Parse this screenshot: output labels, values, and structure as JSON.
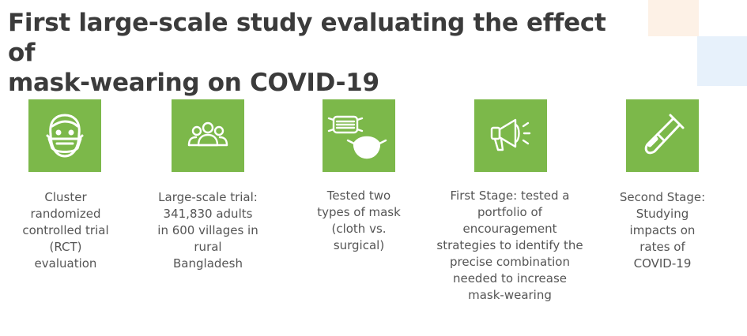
{
  "title": {
    "line1": "First large-scale study evaluating the effect of",
    "line2": "mask-wearing on COVID-19"
  },
  "colors": {
    "tile_green": "#7cb84a",
    "title_text": "#3b3b3b",
    "caption_text": "#555555",
    "deco_peach": "#fdf1e6",
    "deco_blue": "#e7f1fb"
  },
  "items": [
    {
      "icon": "masked-face-icon",
      "caption": [
        "Cluster",
        "randomized",
        "controlled trial",
        "(RCT)",
        "evaluation"
      ]
    },
    {
      "icon": "people-group-icon",
      "caption": [
        "Large-scale trial:",
        "341,830 adults",
        "in 600 villages in",
        "rural",
        "Bangladesh"
      ]
    },
    {
      "icon": "masks-icon",
      "caption": [
        "Tested two",
        "types of mask",
        "(cloth vs.",
        "surgical)"
      ]
    },
    {
      "icon": "megaphone-icon",
      "caption": [
        "First Stage: tested a",
        "portfolio of",
        "encouragement",
        "strategies to identify the",
        "precise combination",
        "needed to increase",
        "mask-wearing"
      ]
    },
    {
      "icon": "test-tube-icon",
      "caption": [
        "Second Stage:",
        "Studying",
        "impacts on",
        "rates of",
        "COVID-19"
      ]
    }
  ]
}
